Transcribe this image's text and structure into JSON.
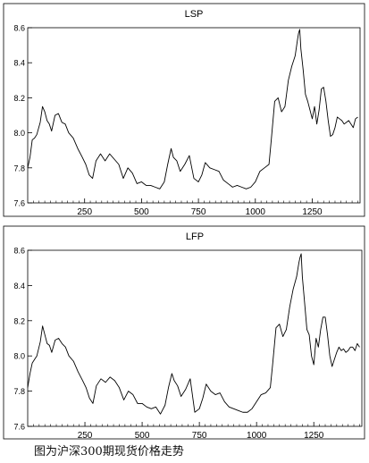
{
  "caption": "图为沪深300期现货价格走势",
  "chart_data": [
    {
      "type": "line",
      "title": "LSP",
      "xlabel": "",
      "ylabel": "",
      "xlim": [
        0,
        1460
      ],
      "ylim": [
        7.6,
        8.6
      ],
      "x_ticks": [
        250,
        500,
        750,
        1000,
        1250
      ],
      "y_ticks": [
        7.6,
        7.8,
        8.0,
        8.2,
        8.4,
        8.6
      ],
      "y_tick_labels": [
        "7.6",
        "7.8",
        "8.0",
        "8.2",
        "8.4",
        "8.6"
      ],
      "grid": false,
      "series": [
        {
          "color": "#000000",
          "x": [
            0,
            10,
            20,
            30,
            40,
            55,
            65,
            75,
            85,
            95,
            105,
            120,
            135,
            150,
            165,
            180,
            200,
            220,
            240,
            255,
            270,
            285,
            300,
            320,
            340,
            360,
            380,
            400,
            420,
            440,
            460,
            480,
            500,
            520,
            540,
            560,
            580,
            600,
            615,
            630,
            640,
            655,
            670,
            690,
            710,
            730,
            750,
            765,
            780,
            800,
            820,
            840,
            860,
            880,
            900,
            920,
            940,
            960,
            980,
            1000,
            1020,
            1040,
            1060,
            1070,
            1085,
            1100,
            1115,
            1130,
            1145,
            1160,
            1175,
            1185,
            1190,
            1195,
            1200,
            1210,
            1220,
            1230,
            1240,
            1250,
            1260,
            1270,
            1280,
            1290,
            1300,
            1310,
            1320,
            1330,
            1340,
            1350,
            1360,
            1370,
            1380,
            1390,
            1400,
            1410,
            1420,
            1430,
            1440,
            1450
          ],
          "values": [
            7.8,
            7.86,
            7.96,
            7.97,
            7.99,
            8.06,
            8.15,
            8.12,
            8.07,
            8.05,
            8.01,
            8.1,
            8.11,
            8.06,
            8.05,
            8.0,
            7.97,
            7.91,
            7.86,
            7.82,
            7.76,
            7.74,
            7.84,
            7.88,
            7.84,
            7.88,
            7.85,
            7.82,
            7.74,
            7.8,
            7.77,
            7.71,
            7.72,
            7.7,
            7.7,
            7.69,
            7.68,
            7.72,
            7.82,
            7.91,
            7.86,
            7.84,
            7.78,
            7.82,
            7.87,
            7.74,
            7.72,
            7.76,
            7.83,
            7.8,
            7.79,
            7.78,
            7.73,
            7.71,
            7.69,
            7.7,
            7.69,
            7.68,
            7.69,
            7.72,
            7.78,
            7.8,
            7.82,
            7.96,
            8.18,
            8.2,
            8.12,
            8.15,
            8.3,
            8.38,
            8.44,
            8.53,
            8.57,
            8.59,
            8.48,
            8.36,
            8.22,
            8.18,
            8.13,
            8.08,
            8.15,
            8.05,
            8.13,
            8.25,
            8.26,
            8.18,
            8.07,
            7.98,
            7.99,
            8.03,
            8.09,
            8.08,
            8.07,
            8.05,
            8.06,
            8.07,
            8.05,
            8.03,
            8.08,
            8.09
          ]
        }
      ]
    },
    {
      "type": "line",
      "title": "LFP",
      "xlabel": "",
      "ylabel": "",
      "xlim": [
        0,
        1460
      ],
      "ylim": [
        7.6,
        8.6
      ],
      "x_ticks": [
        250,
        500,
        750,
        1000,
        1250
      ],
      "y_ticks": [
        7.6,
        7.8,
        8.0,
        8.2,
        8.4,
        8.6
      ],
      "y_tick_labels": [
        "7.6",
        "7.8",
        "8.0",
        "8.2",
        "8.4",
        "8.6"
      ],
      "grid": false,
      "series": [
        {
          "color": "#000000",
          "x": [
            0,
            10,
            20,
            30,
            40,
            55,
            65,
            75,
            85,
            95,
            105,
            120,
            135,
            150,
            165,
            180,
            200,
            220,
            240,
            255,
            270,
            285,
            300,
            320,
            340,
            360,
            380,
            400,
            420,
            440,
            460,
            480,
            500,
            520,
            540,
            560,
            580,
            600,
            615,
            630,
            640,
            655,
            670,
            690,
            710,
            730,
            750,
            765,
            780,
            800,
            820,
            840,
            860,
            880,
            900,
            920,
            940,
            960,
            980,
            1000,
            1020,
            1040,
            1060,
            1070,
            1085,
            1100,
            1115,
            1130,
            1145,
            1160,
            1175,
            1185,
            1190,
            1195,
            1200,
            1210,
            1220,
            1230,
            1240,
            1250,
            1260,
            1270,
            1280,
            1290,
            1300,
            1310,
            1320,
            1330,
            1340,
            1350,
            1360,
            1370,
            1380,
            1390,
            1400,
            1410,
            1420,
            1430,
            1440,
            1450
          ],
          "values": [
            7.82,
            7.9,
            7.96,
            7.98,
            8.0,
            8.08,
            8.17,
            8.12,
            8.07,
            8.06,
            8.02,
            8.09,
            8.1,
            8.07,
            8.05,
            8.0,
            7.97,
            7.91,
            7.86,
            7.82,
            7.76,
            7.73,
            7.83,
            7.87,
            7.85,
            7.88,
            7.86,
            7.82,
            7.75,
            7.8,
            7.78,
            7.73,
            7.73,
            7.71,
            7.7,
            7.71,
            7.67,
            7.72,
            7.82,
            7.9,
            7.86,
            7.83,
            7.77,
            7.81,
            7.87,
            7.68,
            7.7,
            7.76,
            7.84,
            7.8,
            7.78,
            7.79,
            7.74,
            7.71,
            7.7,
            7.69,
            7.68,
            7.68,
            7.7,
            7.74,
            7.78,
            7.79,
            7.82,
            7.95,
            8.16,
            8.18,
            8.11,
            8.15,
            8.28,
            8.38,
            8.45,
            8.53,
            8.56,
            8.58,
            8.45,
            8.3,
            8.15,
            8.12,
            8.0,
            7.95,
            8.1,
            8.05,
            8.15,
            8.22,
            8.22,
            8.12,
            8.0,
            7.94,
            7.98,
            8.02,
            8.05,
            8.03,
            8.04,
            8.02,
            8.03,
            8.05,
            8.05,
            8.03,
            8.07,
            8.05
          ]
        }
      ]
    }
  ]
}
